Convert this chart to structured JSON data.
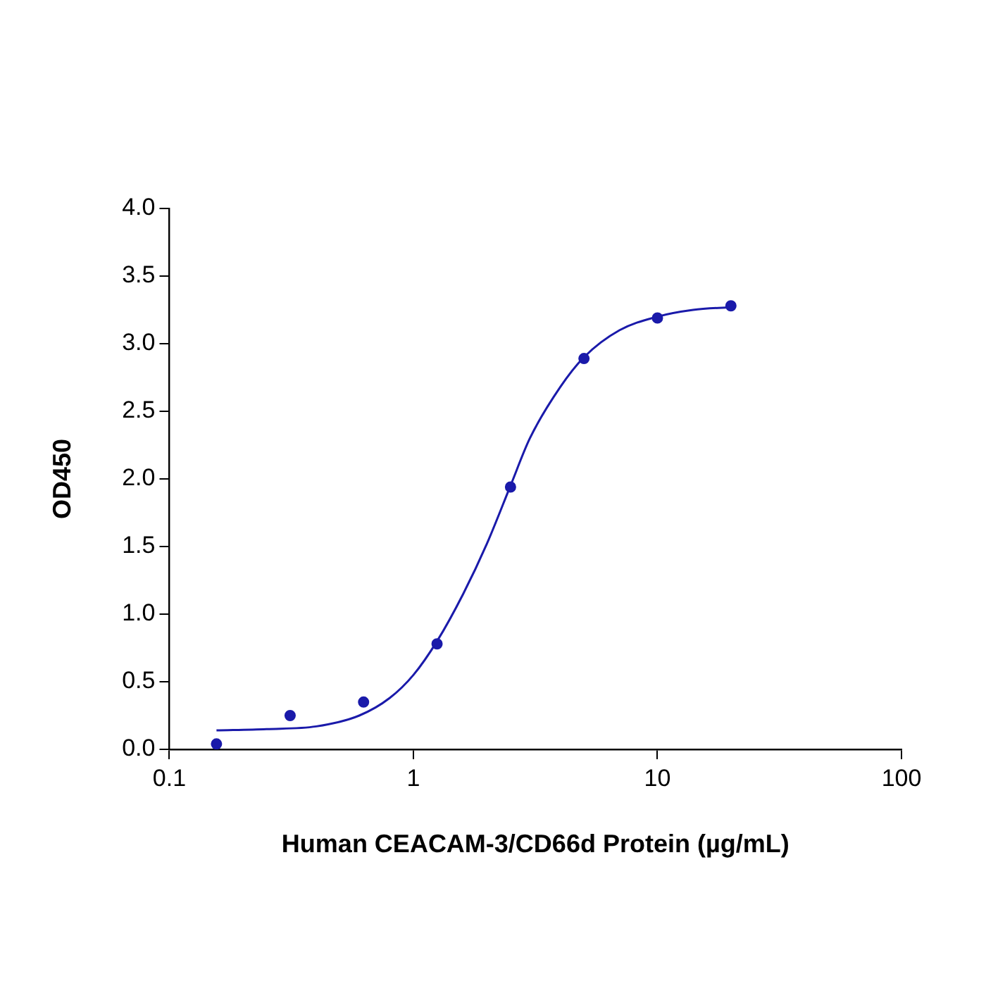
{
  "chart_data": {
    "type": "scatter",
    "xlabel": "Human CEACAM-3/CD66d Protein (µg/mL)",
    "ylabel": "OD450",
    "log": "x",
    "grid": false,
    "legend": false,
    "xlim": [
      0.1,
      100
    ],
    "xticks": [
      0.1,
      1,
      10,
      100
    ],
    "ylim": [
      0,
      4
    ],
    "yticks": [
      {
        "value": 0,
        "label": "0.0"
      },
      {
        "value": 0.5,
        "label": "0.5"
      },
      {
        "value": 1,
        "label": "1.0"
      },
      {
        "value": 1.5,
        "label": "1.5"
      },
      {
        "value": 2,
        "label": "2.0"
      },
      {
        "value": 2.5,
        "label": "2.5"
      },
      {
        "value": 3,
        "label": "3.0"
      },
      {
        "value": 3.5,
        "label": "3.5"
      },
      {
        "value": 4,
        "label": "4.0"
      }
    ],
    "series": [
      {
        "type": "scatter",
        "marker": "circle",
        "color": "#1a1aaa",
        "x": [
          0.156,
          0.3125,
          0.625,
          1.25,
          2.5,
          5,
          10,
          20
        ],
        "values": [
          0.04,
          0.25,
          0.35,
          0.78,
          1.94,
          2.89,
          3.19,
          3.28
        ]
      },
      {
        "type": "line",
        "marker": "none",
        "color": "#1a1aaa",
        "line_style": "solid",
        "x": [
          0.156,
          0.25,
          0.4,
          0.6,
          0.8,
          1,
          1.25,
          1.6,
          2,
          2.5,
          3,
          4,
          5,
          7,
          10,
          14,
          20
        ],
        "values": [
          0.14,
          0.15,
          0.17,
          0.25,
          0.38,
          0.55,
          0.8,
          1.15,
          1.52,
          1.95,
          2.3,
          2.68,
          2.9,
          3.1,
          3.2,
          3.25,
          3.27
        ]
      }
    ]
  }
}
